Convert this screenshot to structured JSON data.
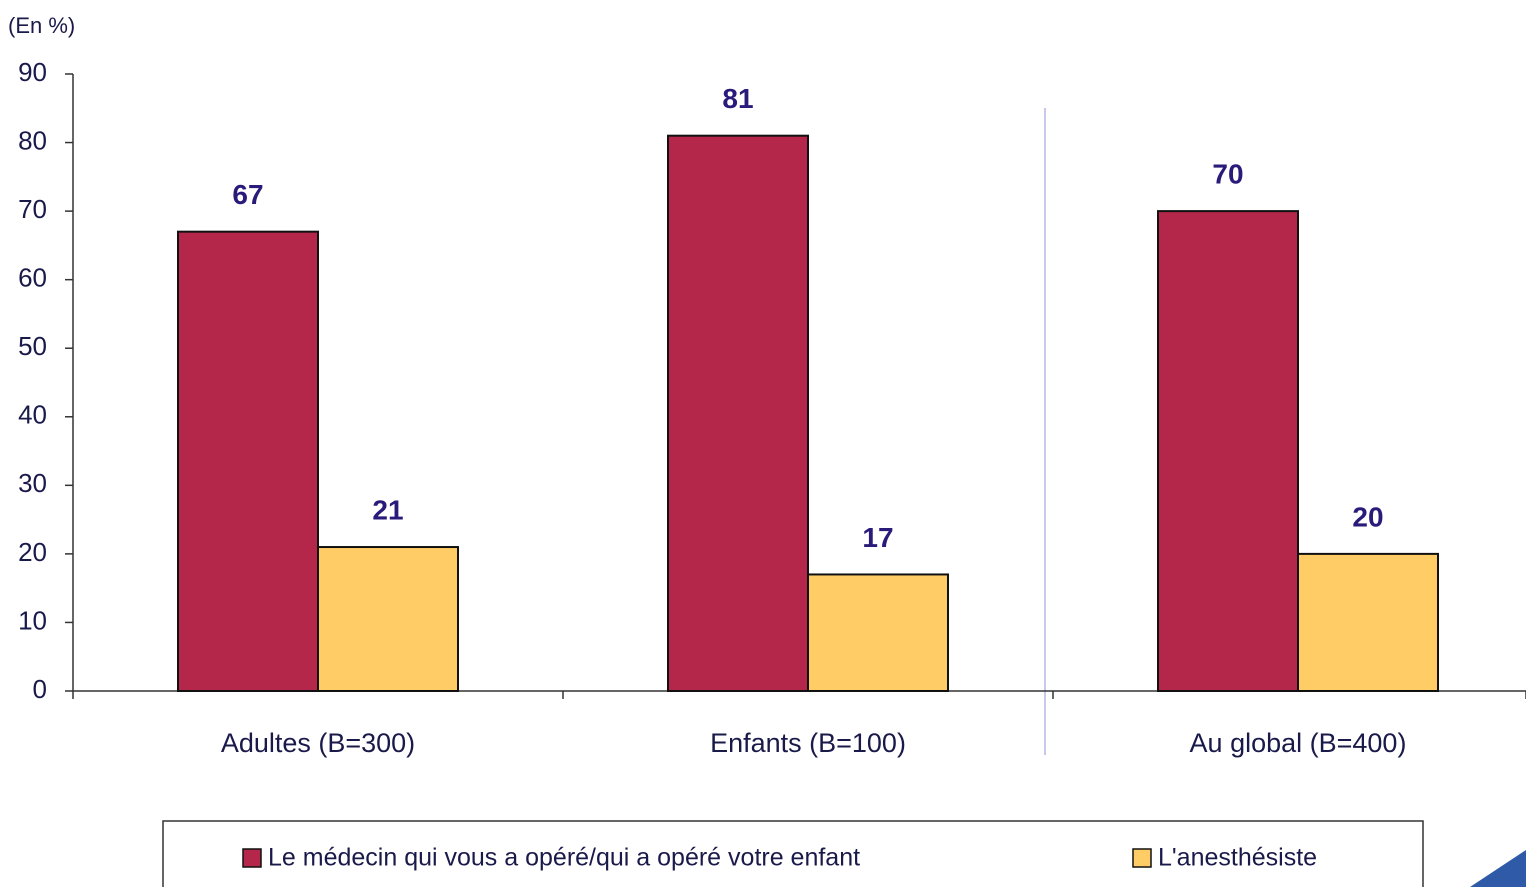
{
  "chart_data": {
    "type": "bar",
    "y_axis_label": "(En %)",
    "categories": [
      "Adultes (B=300)",
      "Enfants (B=100)",
      "Au global (B=400)"
    ],
    "series": [
      {
        "name": "Le médecin qui vous a opéré/qui a opéré votre enfant",
        "color": "#b5274a",
        "values": [
          67,
          81,
          70
        ]
      },
      {
        "name": "L'anesthésiste",
        "color": "#ffcc66",
        "values": [
          21,
          17,
          20
        ]
      }
    ],
    "ylim": [
      0,
      90
    ],
    "yticks": [
      0,
      10,
      20,
      30,
      40,
      50,
      60,
      70,
      80,
      90
    ]
  }
}
